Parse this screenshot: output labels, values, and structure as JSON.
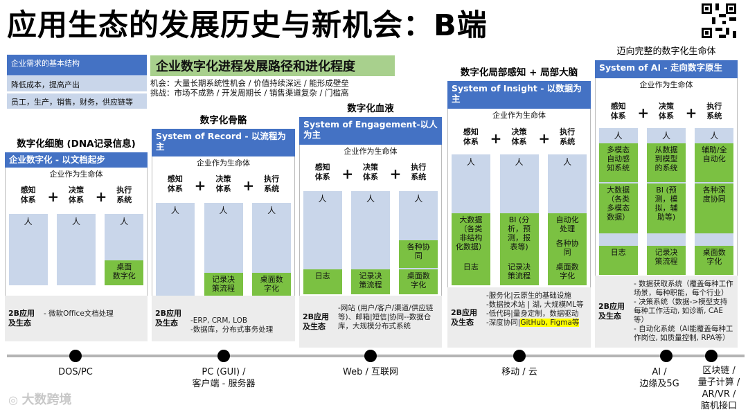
{
  "title": "应用生态的发展历史与新机会：B端",
  "requirements": {
    "header": "企业需求的基本结构",
    "line1": "降低成本，提高产出",
    "line2": "员工，生产，销售，财务，供应链等"
  },
  "path": {
    "header": "企业数字化进程发展路径和进化程度",
    "line1": "机会：大量长期系统性机会 / 价值持续深远 / 能形成壁垒",
    "line2": "挑战：市场不成熟 / 开发周期长 / 销售渠道复杂 / 门槛高"
  },
  "common": {
    "life": "企业作为生命体",
    "sense": "感知\n体系",
    "decide": "决策\n体系",
    "execute": "执行\n系统",
    "person": "人",
    "plus": "+",
    "footer_label": "2B应用\n及生态"
  },
  "stages": [
    {
      "title": "数字化细胞 (DNA记录信息)",
      "header": "企业数字化 - 以文档起步",
      "cells": {
        "execute": "桌面\n数字化"
      },
      "footer": "- 微软Office文档处理"
    },
    {
      "title": "数字化骨骼",
      "header": "System of Record - 以流程为主",
      "cells": {
        "decide": "记录决\n策流程",
        "execute": "桌面数\n字化"
      },
      "footer": "-ERP, CRM, LOB\n-数据库，分布式事务处理"
    },
    {
      "title": "数字化血液",
      "header": "System of Engagement-以人为主",
      "cells": {
        "sense": "日志",
        "decide": "记录决\n策流程",
        "execute_top": "各种协\n同",
        "execute": "桌面数\n字化"
      },
      "footer": "-网站 (用户/客户/渠道/供应链等)、邮箱|短信|协同--数据仓库，大规模分布式系统"
    },
    {
      "title": "数字化局部感知 + 局部大脑",
      "header": "System of Insight - 以数据为主",
      "cells": {
        "sense_top": "大数据\n（各类\n非结构\n化数据）",
        "sense": "日志",
        "decide_top": "BI (分\n析，预\n测，报\n表等)",
        "decide": "记录决\n策流程",
        "execute_top": "自动化\n处理",
        "execute_mid": "各种协\n同",
        "execute": "桌面数\n字化"
      },
      "footer": "-服务化|云原生的基础设施\n-数据技术站 | 湖, 大规模ML等\n-低代码|量身定制，数据驱动\n-深度协同|",
      "footer_highlight": "GitHub, Figma等"
    },
    {
      "title": "迈向完整的数字化生命体",
      "header": "System of AI  - 走向数字原生",
      "cells": {
        "sense_top": "多模态\n自动感\n知系统",
        "sense_mid": "大数据\n（各类\n多模态\n数据）",
        "sense": "日志",
        "decide_top": "从数据\n到模型\n的系统",
        "decide_mid": "BI (预\n测，模\n拟，辅\n助等)",
        "decide": "记录决\n策流程",
        "execute_top": "辅助/全\n自动化",
        "execute_mid": "各种深\n度协同",
        "execute": "桌面数\n字化"
      },
      "footer": "- 数据获取系统（覆盖每种工作场景，每种职能，每个行业）\n- 决策系统（数据->模型支持每种工作活动, 如诊断, CAE等）\n- 自动化系统（AI能覆盖每种工作岗位, 如质量控制, RPA等）"
    }
  ],
  "timeline": [
    {
      "label": "DOS/PC"
    },
    {
      "label": "PC (GUI) /\n客户端 - 服务器"
    },
    {
      "label": "Web / 互联网"
    },
    {
      "label": "移动 / 云"
    },
    {
      "label": "AI /\n边缘及5G"
    },
    {
      "label": "区块链 /\n量子计算 /\nAR/VR /\n脑机接口"
    }
  ],
  "watermark": "大数跨境"
}
